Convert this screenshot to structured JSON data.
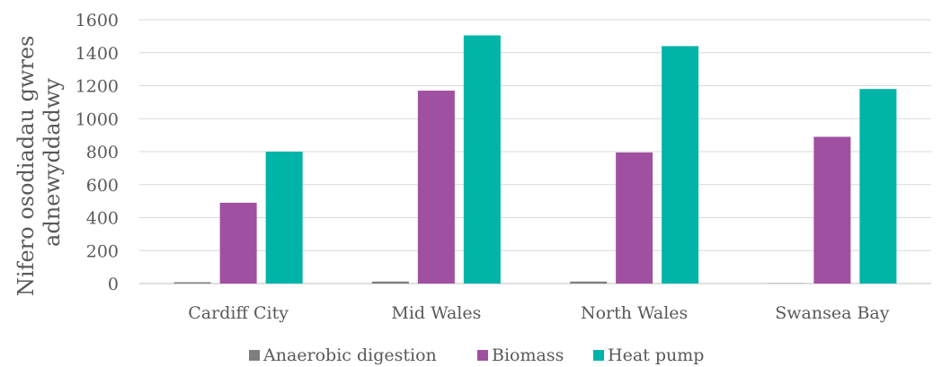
{
  "chart_data": {
    "type": "bar",
    "title": "",
    "xlabel": "",
    "ylabel_lines": [
      "Nifero osodiadau gwres",
      "adnewyddadwy"
    ],
    "categories": [
      "Cardiff City",
      "Mid Wales",
      "North Wales",
      "Swansea Bay"
    ],
    "y_ticks": [
      "0",
      "200",
      "400",
      "600",
      "800",
      "1000",
      "1200",
      "1400",
      "1600"
    ],
    "ylim": [
      0,
      1600
    ],
    "grid": true,
    "legend_position": "bottom",
    "series": [
      {
        "name": "Anaerobic digestion",
        "color": "#7f7f7f",
        "values": [
          8,
          12,
          12,
          2
        ]
      },
      {
        "name": "Biomass",
        "color": "#a050a0",
        "values": [
          490,
          1170,
          795,
          890
        ]
      },
      {
        "name": "Heat pump",
        "color": "#00b4a8",
        "values": [
          800,
          1505,
          1440,
          1180
        ]
      }
    ]
  }
}
